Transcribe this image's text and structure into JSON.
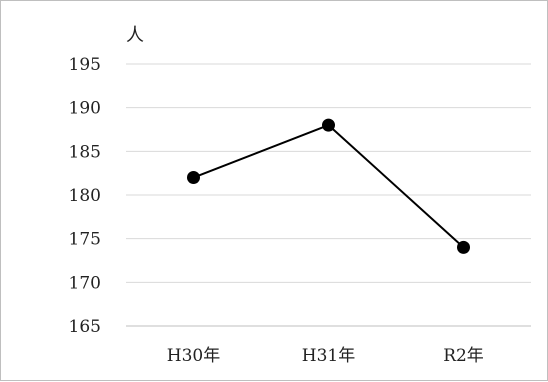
{
  "chart_data": {
    "type": "line",
    "title": "",
    "xlabel": "",
    "ylabel": "人",
    "categories": [
      "H30年",
      "H31年",
      "R2年"
    ],
    "series": [
      {
        "values": [
          182,
          188,
          174
        ]
      }
    ],
    "ylim": [
      165,
      195
    ],
    "yticks": [
      195,
      190,
      185,
      180,
      175,
      170,
      165
    ],
    "grid": true,
    "legend": "none",
    "colors": {
      "line": "#000000",
      "marker": "#000000",
      "grid": "#d9d9d9",
      "axis": "#bfbfbf",
      "frame": "#bfbfbf"
    }
  }
}
